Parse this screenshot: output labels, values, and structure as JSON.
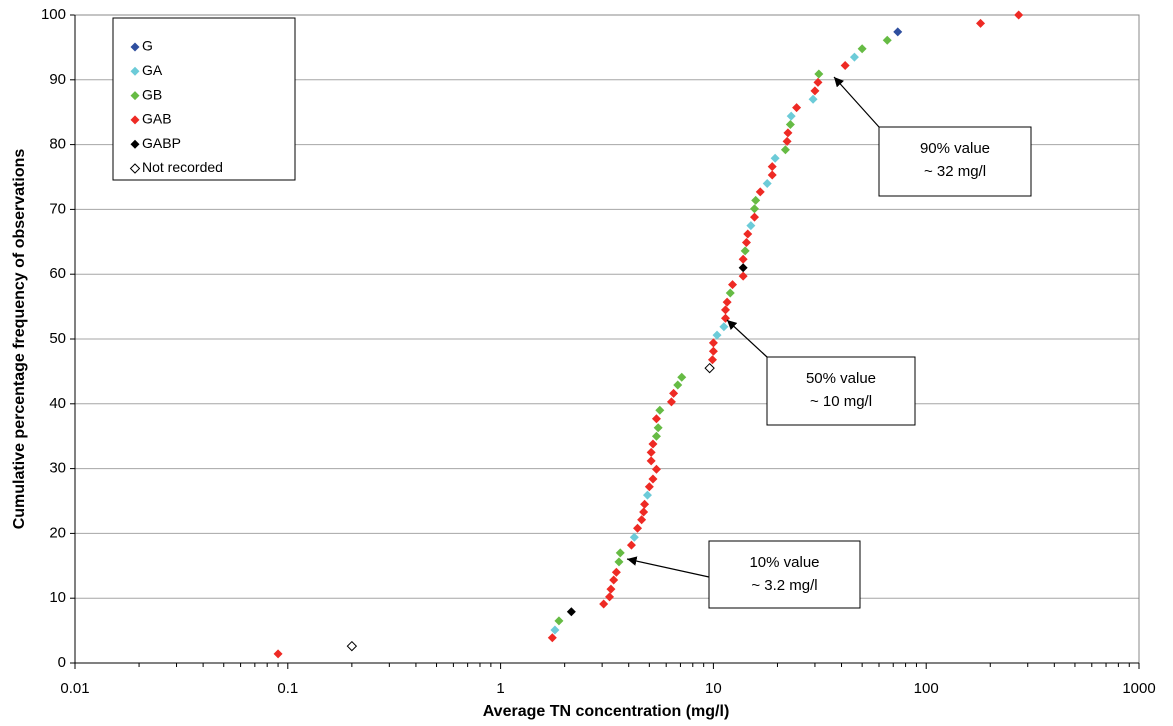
{
  "chart_data": {
    "type": "scatter",
    "x_label": "Average TN concentration (mg/l)",
    "y_label": "Cumulative percentage frequency of observations",
    "log_x": true,
    "grid": true,
    "legend": "upper left",
    "xlim": [
      0.01,
      1000
    ],
    "xticks": [
      0.01,
      0.1,
      1,
      10,
      100,
      1000
    ],
    "ylim": [
      0,
      100
    ],
    "yticks": [
      0,
      10,
      20,
      30,
      40,
      50,
      60,
      70,
      80,
      90,
      100
    ],
    "series": [
      {
        "name": "G",
        "color": "#2f4f9f",
        "x": [
          73.5
        ],
        "y": [
          97.4
        ]
      },
      {
        "name": "GA",
        "color": "#6ccbd8",
        "x": [
          1.8,
          4.25,
          4.9,
          10.4,
          11.2,
          15.0,
          17.9,
          19.5,
          23.2,
          29.4,
          46
        ],
        "y": [
          5.1,
          19.4,
          25.9,
          50.6,
          51.9,
          67.5,
          74.0,
          77.9,
          84.4,
          87.0,
          93.5
        ]
      },
      {
        "name": "GB",
        "color": "#66bb44",
        "x": [
          1.88,
          3.6,
          3.65,
          5.4,
          5.5,
          5.6,
          6.8,
          7.1,
          12.0,
          14.1,
          15.6,
          15.8,
          21.8,
          23.0,
          31.3,
          50,
          65.6
        ],
        "y": [
          6.5,
          15.6,
          17.0,
          35.0,
          36.3,
          39.0,
          42.9,
          44.1,
          57.1,
          63.6,
          70.1,
          71.4,
          79.2,
          83.1,
          90.9,
          94.8,
          96.1
        ]
      },
      {
        "name": "GAB",
        "color": "#ee2a24",
        "x": [
          0.09,
          1.75,
          3.05,
          3.25,
          3.3,
          3.4,
          3.5,
          4.12,
          4.4,
          4.6,
          4.7,
          4.75,
          5.0,
          5.2,
          5.4,
          5.1,
          5.1,
          5.2,
          5.4,
          6.35,
          6.5,
          9.9,
          10,
          10,
          11.4,
          11.4,
          11.6,
          12.3,
          13.8,
          13.8,
          14.3,
          14.5,
          15.6,
          16.6,
          18.9,
          18.9,
          22.2,
          22.4,
          24.6,
          30.0,
          31.0,
          41.6,
          180,
          272
        ],
        "y": [
          1.4,
          3.9,
          9.1,
          10.2,
          11.4,
          12.8,
          14.0,
          18.2,
          20.8,
          22.1,
          23.3,
          24.5,
          27.2,
          28.4,
          29.9,
          31.2,
          32.5,
          33.8,
          37.7,
          40.3,
          41.6,
          46.8,
          48.1,
          49.4,
          53.2,
          54.5,
          55.7,
          58.4,
          59.7,
          62.3,
          64.9,
          66.2,
          68.8,
          72.7,
          75.3,
          76.6,
          80.5,
          81.8,
          85.7,
          88.3,
          89.6,
          92.2,
          98.7,
          100
        ]
      },
      {
        "name": "GABP",
        "color": "#000000",
        "x": [
          2.15,
          13.8
        ],
        "y": [
          7.9,
          61.0
        ]
      },
      {
        "name": "Not recorded",
        "color": "#ffffff",
        "x": [
          0.2,
          9.6
        ],
        "y": [
          2.6,
          45.5
        ]
      }
    ],
    "annotations": [
      {
        "lines": [
          "90% value",
          "~ 32 mg/l"
        ]
      },
      {
        "lines": [
          "50% value",
          "~ 10 mg/l"
        ]
      },
      {
        "lines": [
          "10% value",
          "~ 3.2 mg/l"
        ]
      }
    ]
  }
}
